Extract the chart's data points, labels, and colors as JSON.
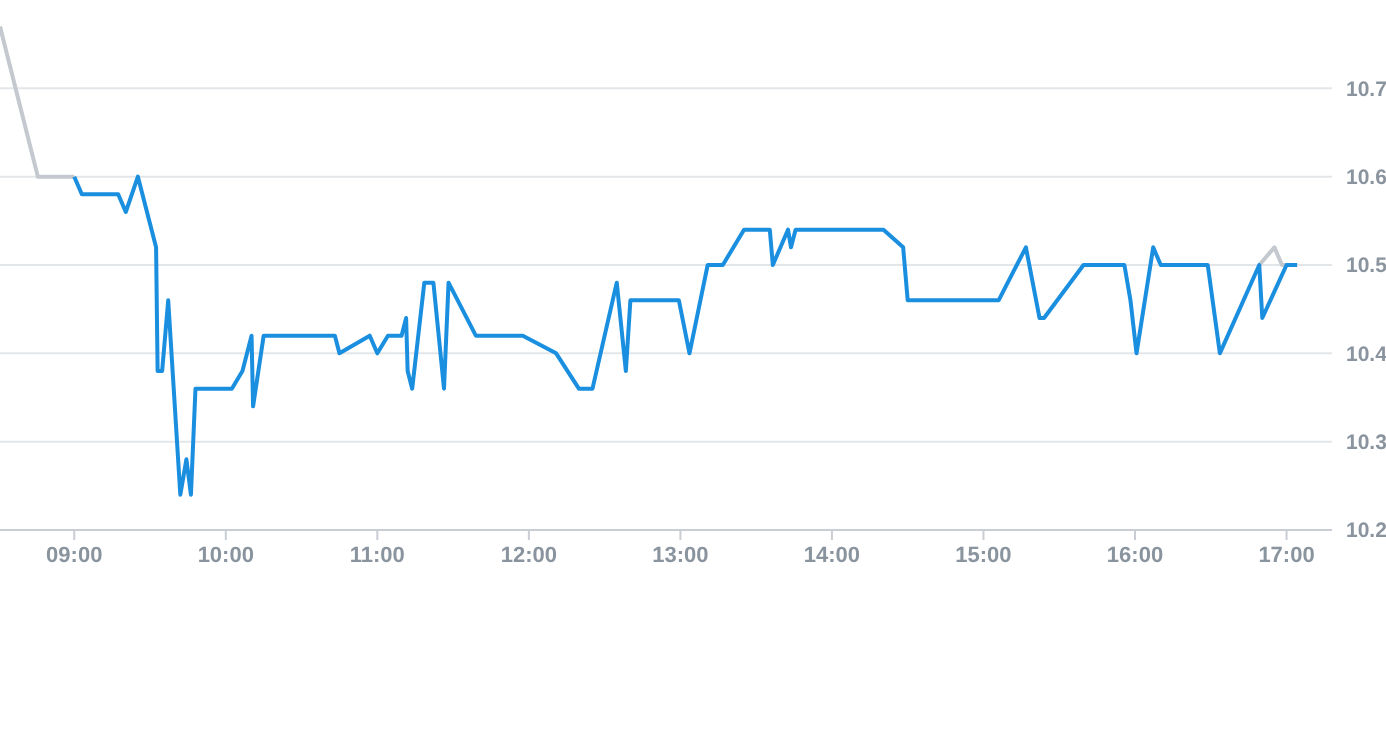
{
  "chart_data": {
    "type": "line",
    "xlim": [
      8.51,
      17.3
    ],
    "ylim": [
      10.2,
      10.8
    ],
    "xticks": [
      {
        "value": 9,
        "label": "09:00"
      },
      {
        "value": 10,
        "label": "10:00"
      },
      {
        "value": 11,
        "label": "11:00"
      },
      {
        "value": 12,
        "label": "12:00"
      },
      {
        "value": 13,
        "label": "13:00"
      },
      {
        "value": 14,
        "label": "14:00"
      },
      {
        "value": 15,
        "label": "15:00"
      },
      {
        "value": 16,
        "label": "16:00"
      },
      {
        "value": 17,
        "label": "17:00"
      }
    ],
    "yticks": [
      10.2,
      10.3,
      10.4,
      10.5,
      10.6,
      10.7
    ],
    "grid": "y",
    "marker": "none",
    "line_style": "solid",
    "legend": false,
    "series": [
      {
        "color": "#c3c9cf",
        "x": [
          8.51,
          8.76,
          9.0,
          9.01,
          16.82,
          16.92,
          16.97,
          17.0
        ],
        "values": [
          10.77,
          10.6,
          10.6,
          null,
          10.5,
          10.52,
          10.5,
          10.5
        ]
      },
      {
        "color": "#1a8fe0",
        "x": [
          9.0,
          9.05,
          9.29,
          9.34,
          9.42,
          9.54,
          9.55,
          9.58,
          9.62,
          9.7,
          9.74,
          9.77,
          9.8,
          10.04,
          10.11,
          10.17,
          10.18,
          10.25,
          10.72,
          10.75,
          10.95,
          11.0,
          11.07,
          11.16,
          11.19,
          11.2,
          11.23,
          11.31,
          11.37,
          11.44,
          11.47,
          11.65,
          11.96,
          12.18,
          12.33,
          12.42,
          12.58,
          12.64,
          12.67,
          12.99,
          13.06,
          13.18,
          13.28,
          13.42,
          13.59,
          13.61,
          13.71,
          13.73,
          13.76,
          14.34,
          14.47,
          14.5,
          15.1,
          15.28,
          15.37,
          15.4,
          15.66,
          15.93,
          15.97,
          16.01,
          16.12,
          16.17,
          16.48,
          16.56,
          16.82,
          16.84,
          17.0,
          17.07
        ],
        "values": [
          10.6,
          10.58,
          10.58,
          10.56,
          10.6,
          10.52,
          10.38,
          10.38,
          10.46,
          10.24,
          10.28,
          10.24,
          10.36,
          10.36,
          10.38,
          10.42,
          10.34,
          10.42,
          10.42,
          10.4,
          10.42,
          10.4,
          10.42,
          10.42,
          10.44,
          10.38,
          10.36,
          10.48,
          10.48,
          10.36,
          10.48,
          10.42,
          10.42,
          10.4,
          10.36,
          10.36,
          10.48,
          10.38,
          10.46,
          10.46,
          10.4,
          10.5,
          10.5,
          10.54,
          10.54,
          10.5,
          10.54,
          10.52,
          10.54,
          10.54,
          10.52,
          10.46,
          10.46,
          10.52,
          10.44,
          10.44,
          10.5,
          10.5,
          10.46,
          10.4,
          10.52,
          10.5,
          10.5,
          10.4,
          10.5,
          10.44,
          10.5,
          10.5
        ]
      }
    ]
  }
}
